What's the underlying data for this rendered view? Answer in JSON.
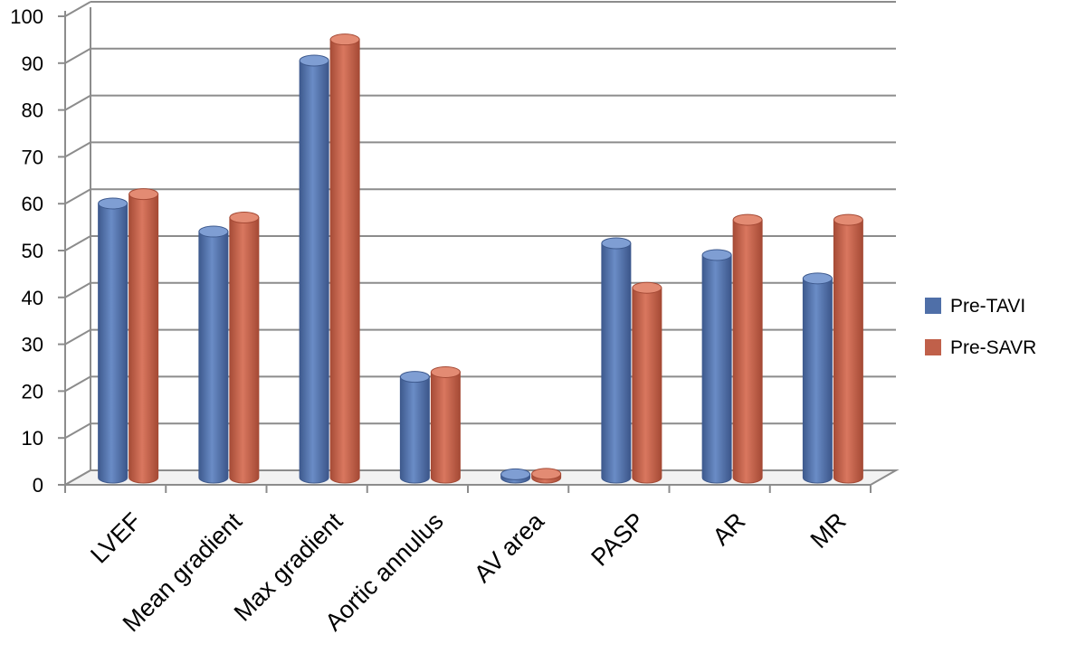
{
  "chart_data": {
    "type": "bar",
    "title": "",
    "xlabel": "",
    "ylabel": "",
    "ylim": [
      0,
      100
    ],
    "yticks": [
      0,
      10,
      20,
      30,
      40,
      50,
      60,
      70,
      80,
      90,
      100
    ],
    "grid": true,
    "legend_position": "right",
    "categories": [
      "LVEF",
      "Mean gradient",
      "Max gradient",
      "Aortic annulus",
      "AV area",
      "PASP",
      "AR",
      "MR"
    ],
    "series": [
      {
        "name": "Pre-TAVI",
        "color": "#4f6fa8",
        "values": [
          58.5,
          52.5,
          89,
          21.5,
          0.7,
          50,
          47.5,
          42.5
        ]
      },
      {
        "name": "Pre-SAVR",
        "color": "#c0604a",
        "values": [
          60.5,
          55.5,
          93.5,
          22.5,
          0.8,
          40.5,
          55,
          55
        ]
      }
    ]
  }
}
